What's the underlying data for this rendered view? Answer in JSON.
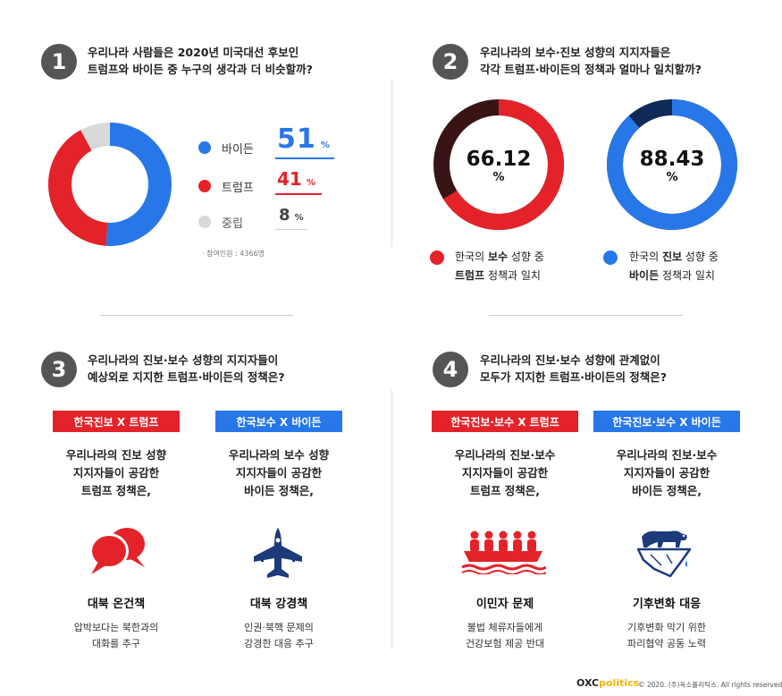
{
  "q1": {
    "number": "1",
    "line1": "우리나라 사람들은 2020년 미국대선 후보인",
    "line2": "트럼프와 바이든 중 누구의 생각과 더 비슷할까?",
    "legend": [
      {
        "label": "바이든",
        "value": "51",
        "unit": "%",
        "color": "#2877e8"
      },
      {
        "label": "트럼프",
        "value": "41",
        "unit": "%",
        "color": "#e32329"
      },
      {
        "label": "중립",
        "value": "8",
        "unit": "%",
        "color": "#d9d9d9"
      }
    ],
    "note": "· 참여인원 : 4366명"
  },
  "q2": {
    "number": "2",
    "line1": "우리나라의 보수·진보 성향의 지지자들은",
    "line2": "각각 트럼프·바이든의 정책과 얼마나 일치할까?",
    "left": {
      "value": "66.12",
      "unit": "%",
      "cap_pre": "한국의 ",
      "cap_bold": "보수",
      "cap_post": " 성향 중",
      "cap2_bold": "트럼프",
      "cap2_post": " 정책과 일치",
      "color": "#e32329"
    },
    "right": {
      "value": "88.43",
      "unit": "%",
      "cap_pre": "한국의 ",
      "cap_bold": "진보",
      "cap_post": " 성향 중",
      "cap2_bold": "바이든",
      "cap2_post": " 정책과 일치",
      "color": "#2877e8"
    }
  },
  "q3": {
    "number": "3",
    "line1": "우리나라의 진보·보수 성향의 지지자들이",
    "line2": "예상외로 지지한 트럼프·바이든의 정책은?",
    "left": {
      "tag": "한국진보 X 트럼프",
      "sub1": "우리나라의 진보 성향",
      "sub2": "지지자들이 공감한",
      "sub3": "트럼프 정책은,",
      "icon": "speech-bubbles-icon",
      "name": "대북 온건책",
      "desc1": "압박보다는 북한과의",
      "desc2": "대화를 추구"
    },
    "right": {
      "tag": "한국보수 X 바이든",
      "sub1": "우리나라의 보수 성향",
      "sub2": "지지자들이 공감한",
      "sub3": "바이든 정책은,",
      "icon": "fighter-jet-icon",
      "name": "대북 강경책",
      "desc1": "인권·북핵 문제의",
      "desc2": "강경한 대응 추구"
    }
  },
  "q4": {
    "number": "4",
    "line1": "우리나라의 진보·보수 성향에 관계없이",
    "line2": "모두가 지지한 트럼프·바이든의 정책은?",
    "left": {
      "tag": "한국진보·보수 X 트럼프",
      "sub1": "우리나라의 진보·보수",
      "sub2": "지지자들이 공감한",
      "sub3": "트럼프 정책은,",
      "icon": "boat-people-icon",
      "name": "이민자 문제",
      "desc1": "불법 체류자들에게",
      "desc2": "건강보험 제공 반대"
    },
    "right": {
      "tag": "한국진보·보수 X 바이든",
      "sub1": "우리나라의 진보·보수",
      "sub2": "지지자들이 공감한",
      "sub3": "바이든 정책은,",
      "icon": "polar-bear-melting-ice-icon",
      "name": "기후변화 대응",
      "desc1": "기후변화 막기 위한",
      "desc2": "파리협약 공동 노력"
    }
  },
  "footer": {
    "logo_a": "OXC",
    "logo_b": "politics",
    "copyright": "© 2020. (주)옥소폴리틱스. All rights reserved."
  },
  "chart_data": [
    {
      "type": "pie",
      "categories": [
        "바이든",
        "트럼프",
        "중립"
      ],
      "values": [
        51,
        41,
        8
      ],
      "unit": "%"
    },
    {
      "type": "pie",
      "categories": [
        "한국의 보수 성향 중 트럼프 정책과 일치"
      ],
      "values": [
        66.12
      ],
      "unit": "%"
    },
    {
      "type": "pie",
      "categories": [
        "한국의 진보 성향 중 바이든 정책과 일치"
      ],
      "values": [
        88.43
      ],
      "unit": "%"
    }
  ]
}
